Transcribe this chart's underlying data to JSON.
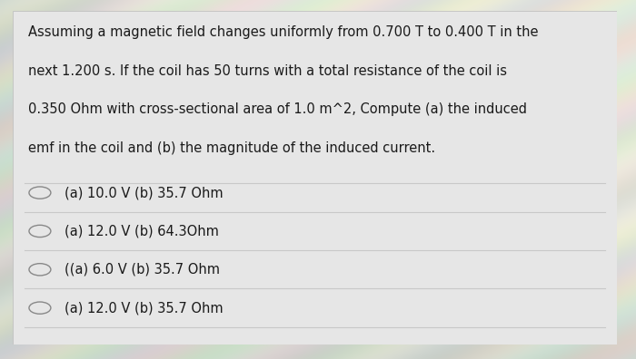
{
  "question_lines": [
    "Assuming a magnetic field changes uniformly from 0.700 T to 0.400 T in the",
    "next 1.200 s. If the coil has 50 turns with a total resistance of the coil is",
    "0.350 Ohm with cross-sectional area of 1.0 m^2, Compute (a) the induced",
    "emf in the coil and (b) the magnitude of the induced current."
  ],
  "choices": [
    "(a) 10.0 V (b) 35.7 Ohm",
    "(a) 12.0 V (b) 64.3Ohm",
    "((a) 6.0 V (b) 35.7 Ohm",
    "(a) 12.0 V (b) 35.7 Ohm"
  ],
  "bg_top_color": "#c8d8c0",
  "bg_bottom_color": "#c8c8d0",
  "card_color": "#e8e8e8",
  "text_color": "#1a1a1a",
  "circle_color": "#888888",
  "line_color": "#c8c8c8",
  "question_fontsize": 10.5,
  "choice_fontsize": 10.5
}
